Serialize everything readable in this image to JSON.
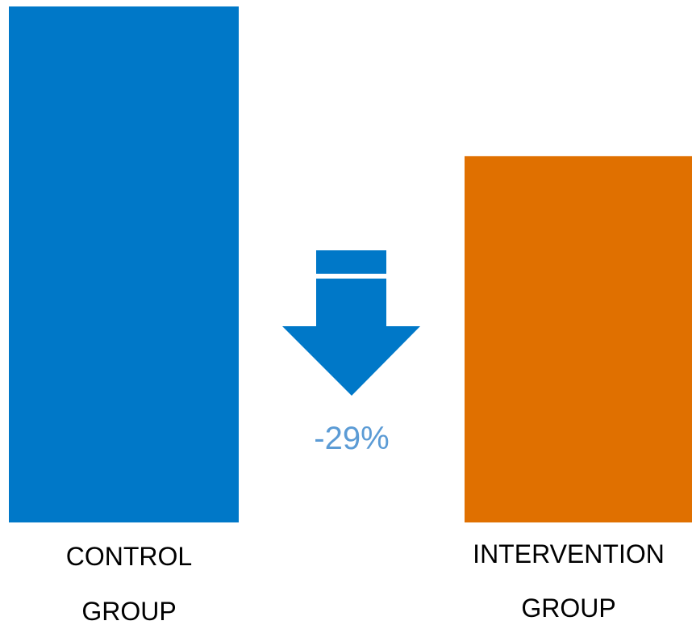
{
  "chart_data": {
    "type": "bar",
    "title": "",
    "xlabel": "",
    "ylabel": "",
    "categories": [
      "CONTROL GROUP",
      "INTERVENTION GROUP"
    ],
    "category_label_lines": [
      [
        "CONTROL",
        "GROUP"
      ],
      [
        "INTERVENTION",
        "GROUP"
      ]
    ],
    "values": [
      100,
      71
    ],
    "ylim": [
      0,
      100
    ],
    "grid": false,
    "legend": "none",
    "bar_colors": [
      "#0078c8",
      "#e07000"
    ],
    "annotation": {
      "type": "down-arrow",
      "text": "-29%",
      "arrow_color": "#0078c8",
      "text_color": "#5b9bd5"
    }
  }
}
